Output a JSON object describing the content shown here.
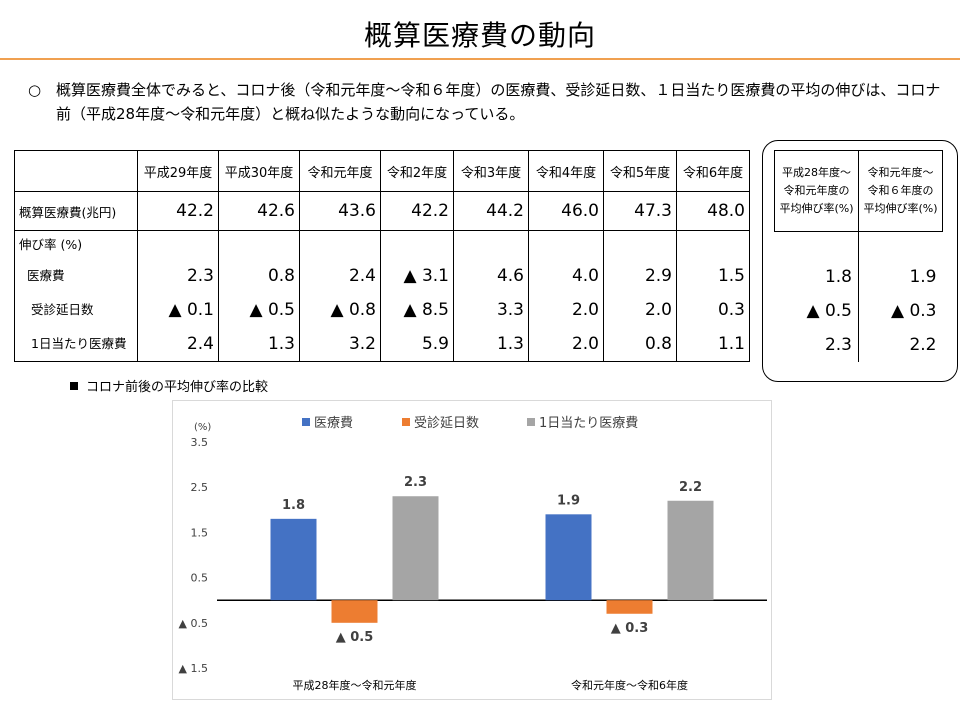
{
  "title": "概算医療費の動向",
  "lead": {
    "bullet": "○",
    "text": "概算医療費全体でみると、コロナ後（令和元年度～令和６年度）の医療費、受診延日数、１日当たり医療費の平均の伸びは、コロナ前（平成28年度～令和元年度）と概ね似たような動向になっている。"
  },
  "table": {
    "years": [
      "平成29年度",
      "平成30年度",
      "令和元年度",
      "令和2年度",
      "令和3年度",
      "令和4年度",
      "令和5年度",
      "令和6年度"
    ],
    "total_label": "概算医療費(兆円)",
    "total": [
      "42.2",
      "42.6",
      "43.6",
      "42.2",
      "44.2",
      "46.0",
      "47.3",
      "48.0"
    ],
    "growth_label": "伸び率 (%)",
    "rows": [
      {
        "label": "医療費",
        "values": [
          "2.3",
          "0.8",
          "2.4",
          "▲ 3.1",
          "4.6",
          "4.0",
          "2.9",
          "1.5"
        ]
      },
      {
        "label": "受診延日数",
        "values": [
          "▲ 0.1",
          "▲ 0.5",
          "▲ 0.8",
          "▲ 8.5",
          "3.3",
          "2.0",
          "2.0",
          "0.3"
        ]
      },
      {
        "label": "1日当たり医療費",
        "values": [
          "2.4",
          "1.3",
          "3.2",
          "5.9",
          "1.3",
          "2.0",
          "0.8",
          "1.1"
        ]
      }
    ]
  },
  "side": {
    "col1_head": [
      "平成28年度～",
      "令和元年度の",
      "平均伸び率(%)"
    ],
    "col2_head": [
      "令和元年度～",
      "令和６年度の",
      "平均伸び率(%)"
    ],
    "col1": [
      "1.8",
      "▲ 0.5",
      "2.3"
    ],
    "col2": [
      "1.9",
      "▲ 0.3",
      "2.2"
    ]
  },
  "section_label": "コロナ前後の平均伸び率の比較",
  "chart_data": {
    "type": "bar",
    "categories": [
      "平成28年度～令和元年度",
      "令和元年度～令和6年度"
    ],
    "series": [
      {
        "name": "医療費",
        "values": [
          1.8,
          1.9
        ],
        "color": "#4472c4",
        "labels": [
          "1.8",
          "1.9"
        ]
      },
      {
        "name": "受診延日数",
        "values": [
          -0.5,
          -0.3
        ],
        "color": "#ed7d31",
        "labels": [
          "▲ 0.5",
          "▲ 0.3"
        ]
      },
      {
        "name": "1日当たり医療費",
        "values": [
          2.3,
          2.2
        ],
        "color": "#a5a5a5",
        "labels": [
          "2.3",
          "2.2"
        ]
      }
    ],
    "ylabel": "(%)",
    "ylim": [
      -1.5,
      3.5
    ],
    "yticks": [
      3.5,
      2.5,
      1.5,
      0.5,
      -0.5,
      -1.5
    ],
    "ytick_labels": [
      "3.5",
      "2.5",
      "1.5",
      "0.5",
      "▲ 0.5",
      "▲ 1.5"
    ],
    "legend_position": "top",
    "grid": false
  }
}
